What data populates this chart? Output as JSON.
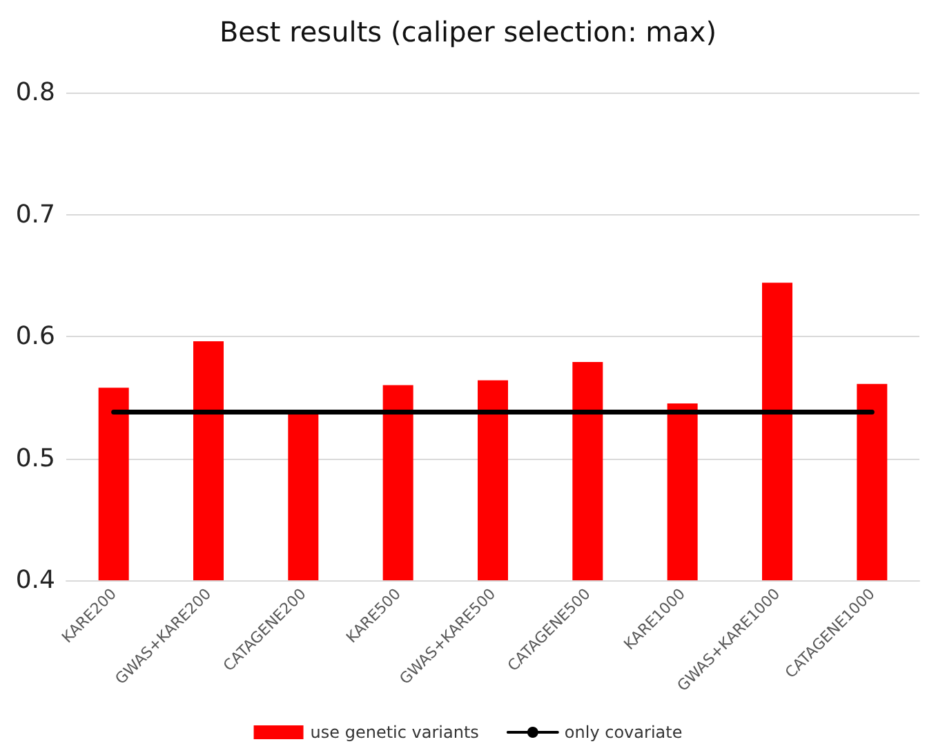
{
  "chart_data": {
    "type": "bar",
    "title": "Best results (caliper selection: max)",
    "categories": [
      "KARE200",
      "GWAS+KARE200",
      "CATAGENE200",
      "KARE500",
      "GWAS+KARE500",
      "CATAGENE500",
      "KARE1000",
      "GWAS+KARE1000",
      "CATAGENE1000"
    ],
    "series": [
      {
        "name": "use genetic variants",
        "color": "#ff0000",
        "values": [
          0.558,
          0.596,
          0.537,
          0.56,
          0.564,
          0.579,
          0.545,
          0.644,
          0.561
        ]
      },
      {
        "name": "only covariate",
        "type": "line",
        "color": "#000000",
        "values": [
          0.538,
          0.538,
          0.538,
          0.538,
          0.538,
          0.538,
          0.538,
          0.538,
          0.538
        ]
      }
    ],
    "ylim": [
      0.4,
      0.8
    ],
    "yticks": [
      0.4,
      0.5,
      0.6,
      0.7,
      0.8
    ],
    "grid": "y",
    "legend": "bottom",
    "marker": "none",
    "line_style": "solid"
  }
}
